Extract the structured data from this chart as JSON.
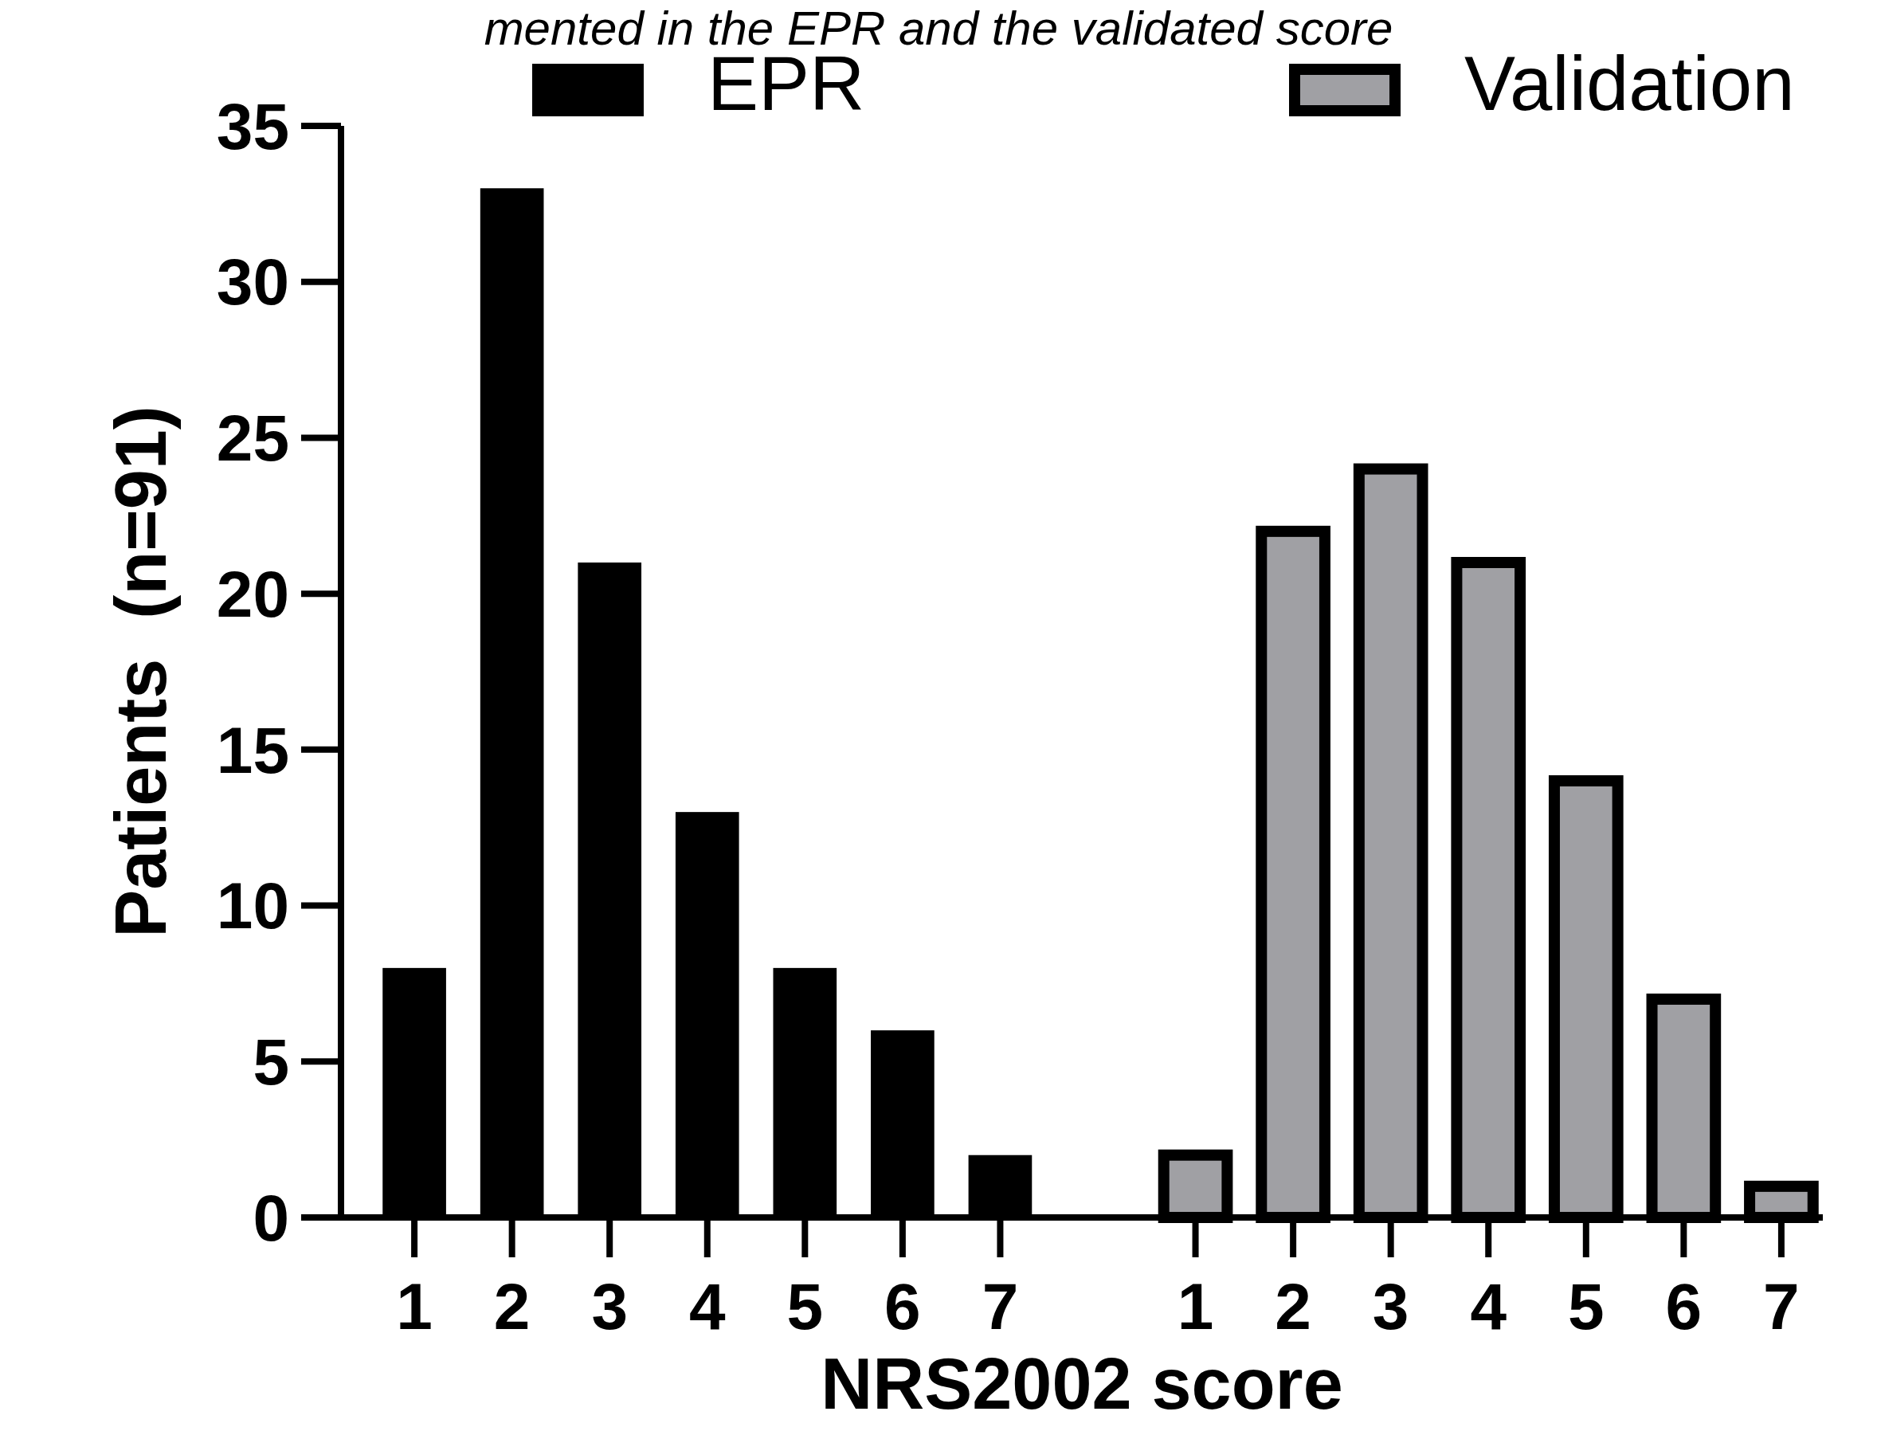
{
  "chart_data": {
    "type": "bar",
    "title": "mented in the EPR and the validated score",
    "xlabel": "NRS2002 score",
    "ylabel": "Patients  (n=91)",
    "categories": [
      "1",
      "2",
      "3",
      "4",
      "5",
      "6",
      "7",
      null,
      "1",
      "2",
      "3",
      "4",
      "5",
      "6",
      "7"
    ],
    "series": [
      {
        "name": "EPR",
        "color": "#000000",
        "values": [
          8,
          33,
          21,
          13,
          8,
          6,
          2,
          null,
          null,
          null,
          null,
          null,
          null,
          null,
          null
        ]
      },
      {
        "name": "Validation",
        "color": "#a0a0a4",
        "values": [
          null,
          null,
          null,
          null,
          null,
          null,
          null,
          null,
          2,
          22,
          24,
          21,
          14,
          7,
          1
        ]
      }
    ],
    "ylim": [
      0,
      35
    ],
    "yticks": [
      0,
      5,
      10,
      15,
      20,
      25,
      30,
      35
    ],
    "grid": false,
    "legend": "top"
  }
}
